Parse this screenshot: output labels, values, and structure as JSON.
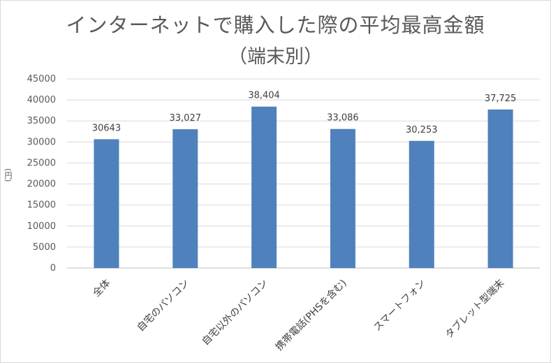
{
  "chart_data": {
    "type": "bar",
    "title": "インターネットで購入した際の平均最高金額",
    "subtitle": "（端末別）",
    "ylabel": "(円)",
    "xlabel": "",
    "categories": [
      "全体",
      "自宅のパソコン",
      "自宅以外のパソコン",
      "携帯電話(PHSを含む)",
      "スマートフォン",
      "タブレット型端末"
    ],
    "values": [
      30643,
      33027,
      38404,
      33086,
      30253,
      37725
    ],
    "data_labels": [
      "30643",
      "33,027",
      "38,404",
      "33,086",
      "30,253",
      "37,725"
    ],
    "ylim": [
      0,
      45000
    ],
    "yticks": [
      0,
      5000,
      10000,
      15000,
      20000,
      25000,
      30000,
      35000,
      40000,
      45000
    ],
    "grid": true,
    "legend": "none",
    "bar_color": "#4f81bd"
  }
}
